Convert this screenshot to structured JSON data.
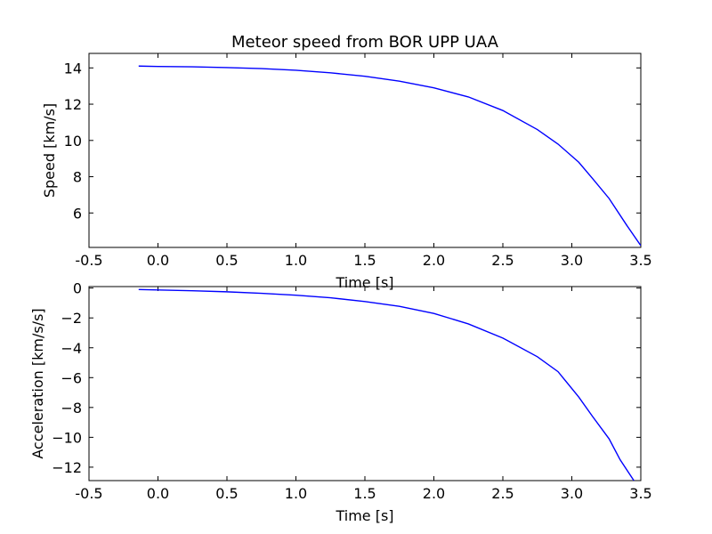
{
  "chart_data": [
    {
      "type": "line",
      "title": "Meteor speed from  BOR UPP UAA",
      "xlabel": "Time [s]",
      "ylabel": "Speed [km/s]",
      "xlim": [
        -0.5,
        3.5
      ],
      "ylim": [
        4.1,
        14.8
      ],
      "xticks": [
        "-0.5",
        "0.0",
        "0.5",
        "1.0",
        "1.5",
        "2.0",
        "2.5",
        "3.0",
        "3.5"
      ],
      "yticks": [
        "6",
        "8",
        "10",
        "12",
        "14"
      ],
      "grid": false,
      "line_color": "#0000ff",
      "series": [
        {
          "x": [
            -0.14,
            0.0,
            0.25,
            0.5,
            0.75,
            1.0,
            1.25,
            1.5,
            1.75,
            2.0,
            2.25,
            2.5,
            2.75,
            2.9,
            3.05,
            3.15,
            3.27,
            3.4,
            3.5
          ],
          "y": [
            14.1,
            14.08,
            14.06,
            14.02,
            13.96,
            13.87,
            13.73,
            13.54,
            13.27,
            12.9,
            12.4,
            11.65,
            10.6,
            9.8,
            8.8,
            7.9,
            6.8,
            5.3,
            4.2
          ]
        }
      ]
    },
    {
      "type": "line",
      "xlabel": "Time [s]",
      "ylabel": "Acceleration [km/s/s]",
      "xlim": [
        -0.5,
        3.5
      ],
      "ylim": [
        -12.9,
        0.1
      ],
      "xticks": [
        "-0.5",
        "0.0",
        "0.5",
        "1.0",
        "1.5",
        "2.0",
        "2.5",
        "3.0",
        "3.5"
      ],
      "yticks": [
        "0",
        "−2",
        "−4",
        "−6",
        "−8",
        "−10",
        "−12"
      ],
      "grid": false,
      "line_color": "#0000ff",
      "series": [
        {
          "x": [
            -0.14,
            0.0,
            0.25,
            0.5,
            0.75,
            1.0,
            1.25,
            1.5,
            1.75,
            2.0,
            2.25,
            2.5,
            2.75,
            2.9,
            3.05,
            3.15,
            3.27,
            3.35,
            3.45
          ],
          "y": [
            -0.1,
            -0.13,
            -0.18,
            -0.25,
            -0.35,
            -0.48,
            -0.65,
            -0.9,
            -1.22,
            -1.7,
            -2.4,
            -3.35,
            -4.6,
            -5.6,
            -7.3,
            -8.6,
            -10.1,
            -11.5,
            -12.9
          ]
        }
      ]
    }
  ]
}
